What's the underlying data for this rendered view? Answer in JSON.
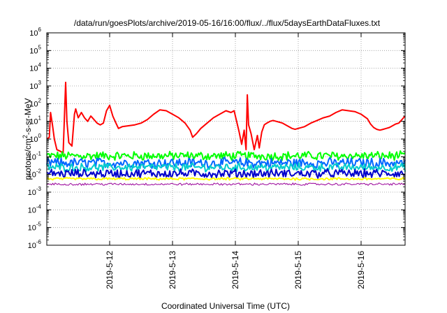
{
  "chart_data": {
    "type": "line",
    "title": "/data/run/goesPlots/archive/2019-05-16/16:00/flux/../flux/5daysEarthDataFluxes.txt",
    "xlabel": "Coordinated Universal Time (UTC)",
    "ylabel": {
      "pre": "protons/cm",
      "sup": "2",
      "post": "-s-sr-MeV"
    },
    "yscale": "log",
    "ylim_exp": [
      -6,
      6
    ],
    "y_ticks": [
      {
        "base": "10",
        "exp": "-6"
      },
      {
        "base": "10",
        "exp": "-5"
      },
      {
        "base": "10",
        "exp": "-4"
      },
      {
        "base": "10",
        "exp": "-3"
      },
      {
        "base": "10",
        "exp": "-2"
      },
      {
        "base": "10",
        "exp": "-1"
      },
      {
        "base": "10",
        "exp": "0"
      },
      {
        "base": "10",
        "exp": "1"
      },
      {
        "base": "10",
        "exp": "2"
      },
      {
        "base": "10",
        "exp": "3"
      },
      {
        "base": "10",
        "exp": "4"
      },
      {
        "base": "10",
        "exp": "5"
      },
      {
        "base": "10",
        "exp": "6"
      }
    ],
    "xlim_days": [
      0.0,
      5.7
    ],
    "x_ticks": [
      {
        "label": "2019-5-12",
        "day": 1.0
      },
      {
        "label": "2019-5-13",
        "day": 2.0
      },
      {
        "label": "2019-5-14",
        "day": 3.0
      },
      {
        "label": "2019-5-15",
        "day": 4.0
      },
      {
        "label": "2019-5-16",
        "day": 5.0
      }
    ],
    "grid": true,
    "series": [
      {
        "color": "#ff0000",
        "width": 2,
        "noisy": false,
        "log_flux": [
          [
            0.0,
            0.0
          ],
          [
            0.04,
            0.1
          ],
          [
            0.06,
            1.5
          ],
          [
            0.09,
            0.8
          ],
          [
            0.12,
            0.0
          ],
          [
            0.16,
            -0.6
          ],
          [
            0.22,
            -0.7
          ],
          [
            0.26,
            -0.8
          ],
          [
            0.3,
            3.2
          ],
          [
            0.32,
            1.0
          ],
          [
            0.35,
            -0.2
          ],
          [
            0.4,
            -0.4
          ],
          [
            0.44,
            1.4
          ],
          [
            0.46,
            1.7
          ],
          [
            0.5,
            1.2
          ],
          [
            0.55,
            1.5
          ],
          [
            0.6,
            1.2
          ],
          [
            0.65,
            1.0
          ],
          [
            0.7,
            1.3
          ],
          [
            0.75,
            1.1
          ],
          [
            0.8,
            0.9
          ],
          [
            0.85,
            0.8
          ],
          [
            0.9,
            0.9
          ],
          [
            0.95,
            1.6
          ],
          [
            1.0,
            1.9
          ],
          [
            1.05,
            1.3
          ],
          [
            1.1,
            0.9
          ],
          [
            1.14,
            0.6
          ],
          [
            1.2,
            0.7
          ],
          [
            1.3,
            0.75
          ],
          [
            1.4,
            0.8
          ],
          [
            1.5,
            0.9
          ],
          [
            1.6,
            1.1
          ],
          [
            1.7,
            1.4
          ],
          [
            1.8,
            1.65
          ],
          [
            1.9,
            1.6
          ],
          [
            2.0,
            1.4
          ],
          [
            2.1,
            1.2
          ],
          [
            2.2,
            0.9
          ],
          [
            2.28,
            0.5
          ],
          [
            2.32,
            0.1
          ],
          [
            2.38,
            0.3
          ],
          [
            2.45,
            0.6
          ],
          [
            2.55,
            0.9
          ],
          [
            2.65,
            1.2
          ],
          [
            2.75,
            1.4
          ],
          [
            2.85,
            1.6
          ],
          [
            2.93,
            1.5
          ],
          [
            2.98,
            1.6
          ],
          [
            3.02,
            1.0
          ],
          [
            3.06,
            0.4
          ],
          [
            3.1,
            -0.3
          ],
          [
            3.14,
            0.5
          ],
          [
            3.17,
            -0.6
          ],
          [
            3.19,
            2.5
          ],
          [
            3.21,
            0.8
          ],
          [
            3.25,
            0.3
          ],
          [
            3.3,
            -0.6
          ],
          [
            3.35,
            0.2
          ],
          [
            3.38,
            -0.5
          ],
          [
            3.42,
            0.4
          ],
          [
            3.46,
            0.8
          ],
          [
            3.5,
            0.9
          ],
          [
            3.55,
            1.0
          ],
          [
            3.6,
            1.05
          ],
          [
            3.65,
            1.0
          ],
          [
            3.7,
            0.95
          ],
          [
            3.75,
            0.9
          ],
          [
            3.8,
            0.8
          ],
          [
            3.85,
            0.7
          ],
          [
            3.9,
            0.6
          ],
          [
            3.95,
            0.55
          ],
          [
            4.0,
            0.6
          ],
          [
            4.1,
            0.7
          ],
          [
            4.2,
            0.9
          ],
          [
            4.3,
            1.05
          ],
          [
            4.4,
            1.2
          ],
          [
            4.5,
            1.3
          ],
          [
            4.6,
            1.5
          ],
          [
            4.7,
            1.65
          ],
          [
            4.8,
            1.6
          ],
          [
            4.9,
            1.55
          ],
          [
            5.0,
            1.4
          ],
          [
            5.1,
            1.15
          ],
          [
            5.15,
            0.85
          ],
          [
            5.2,
            0.65
          ],
          [
            5.25,
            0.55
          ],
          [
            5.3,
            0.5
          ],
          [
            5.35,
            0.55
          ],
          [
            5.4,
            0.6
          ],
          [
            5.45,
            0.65
          ],
          [
            5.5,
            0.75
          ],
          [
            5.55,
            0.85
          ],
          [
            5.6,
            0.9
          ],
          [
            5.65,
            1.1
          ],
          [
            5.7,
            1.3
          ]
        ]
      },
      {
        "color": "#00ff00",
        "width": 2,
        "noisy": true,
        "base_log": -0.95,
        "amp": 0.22
      },
      {
        "color": "#0066ff",
        "width": 2,
        "noisy": true,
        "base_log": -1.35,
        "amp": 0.25
      },
      {
        "color": "#00cccc",
        "width": 2,
        "noisy": true,
        "base_log": -1.6,
        "amp": 0.2
      },
      {
        "color": "#0000cc",
        "width": 2,
        "noisy": true,
        "base_log": -1.95,
        "amp": 0.22
      },
      {
        "color": "#ffff00",
        "width": 2,
        "noisy": true,
        "base_log": -2.25,
        "amp": 0.06
      },
      {
        "color": "#990099",
        "width": 1,
        "noisy": true,
        "base_log": -2.55,
        "amp": 0.06
      }
    ]
  }
}
